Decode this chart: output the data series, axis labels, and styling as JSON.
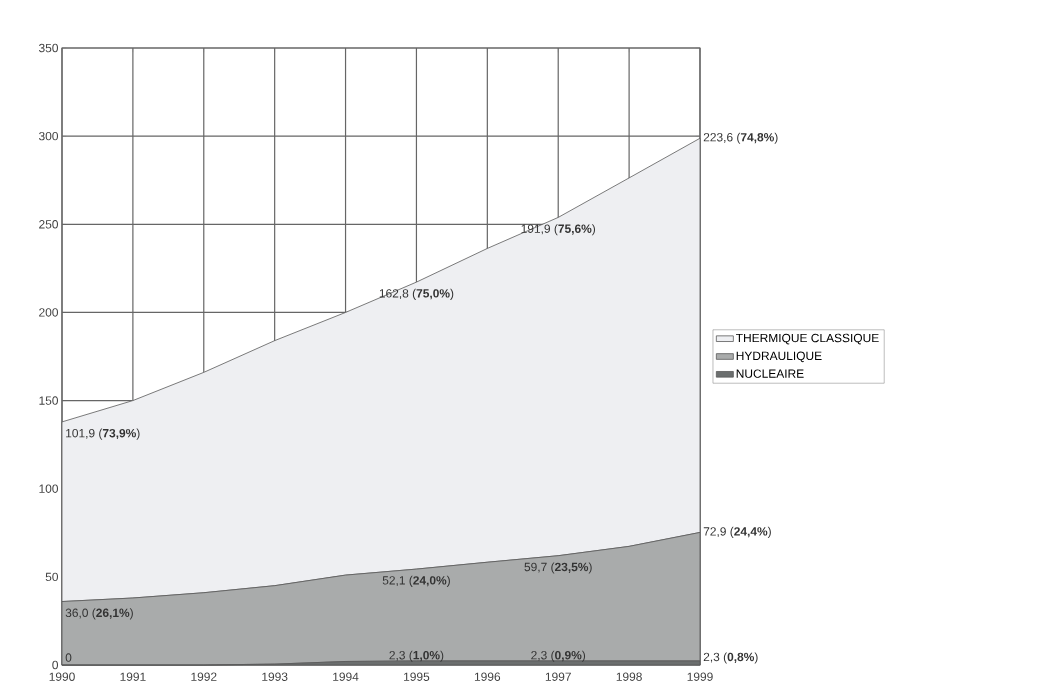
{
  "chart_data": {
    "type": "area",
    "stacked": true,
    "grid": true,
    "legend": "right",
    "x": [
      1990,
      1991,
      1992,
      1993,
      1994,
      1995,
      1996,
      1997,
      1998,
      1999
    ],
    "xlim": [
      1990,
      1999
    ],
    "ylim": [
      0,
      350
    ],
    "xticks": [
      1990,
      1991,
      1992,
      1993,
      1994,
      1995,
      1996,
      1997,
      1998,
      1999
    ],
    "yticks": [
      0,
      50,
      100,
      150,
      200,
      250,
      300,
      350
    ],
    "series": [
      {
        "name": "NUCLEAIRE",
        "color": "#6b6e6e",
        "values": [
          0,
          0,
          0,
          0.5,
          2,
          2.3,
          2.3,
          2.3,
          2.3,
          2.3
        ],
        "value_labels": [
          "0",
          null,
          null,
          null,
          null,
          "2,3 (**1,0%**)",
          null,
          "2,3 (**0,9%**)",
          null,
          "2,3 (**0,8%**)"
        ]
      },
      {
        "name": "HYDRAULIQUE",
        "color": "#a9abab",
        "values": [
          36.0,
          38,
          41,
          44.5,
          49,
          52.1,
          56,
          59.7,
          65,
          72.9
        ],
        "value_labels": [
          "36,0 (**26,1%**)",
          null,
          null,
          null,
          null,
          "52,1 (**24,0%**)",
          null,
          "59,7 (**23,5%**)",
          null,
          "72,9 (**24,4%**)"
        ]
      },
      {
        "name": "THERMIQUE CLASSIQUE",
        "color": "#eeeff2",
        "values": [
          101.9,
          112,
          125,
          139,
          149,
          162.8,
          178,
          191.9,
          209,
          223.6
        ],
        "value_labels": [
          "101,9 (**73,9%**)",
          null,
          null,
          null,
          null,
          "162,8 (**75,0%**)",
          null,
          "191,9 (**75,6%**)",
          null,
          "223,6 (**74,8%**)"
        ]
      }
    ]
  }
}
